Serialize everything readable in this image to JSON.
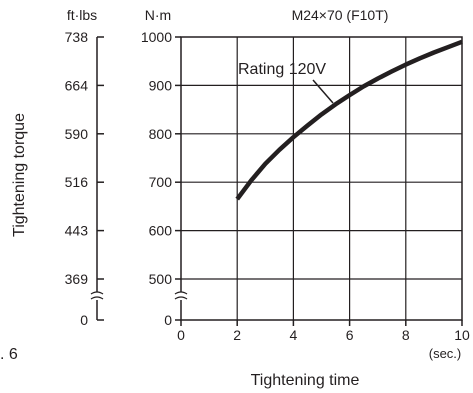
{
  "chart_data": {
    "type": "line",
    "title": "M24×70 (F10T)",
    "xlabel": "Tightening time",
    "x_unit": "(sec.)",
    "ylabel": "Tightening torque",
    "y_unit_left": "ft·lbs",
    "y_unit_right": "N·m",
    "xlim": [
      0,
      10
    ],
    "ylim": [
      400,
      1000
    ],
    "y_break": true,
    "grid": true,
    "x_ticks": [
      "0",
      "2",
      "4",
      "6",
      "8",
      "10"
    ],
    "nm_ticks": [
      {
        "label": "1000",
        "value": 1000
      },
      {
        "label": "900",
        "value": 900
      },
      {
        "label": "800",
        "value": 800
      },
      {
        "label": "700",
        "value": 700
      },
      {
        "label": "600",
        "value": 600
      },
      {
        "label": "500",
        "value": 500
      },
      {
        "label": "0",
        "value": 400
      }
    ],
    "ftlbs_ticks": [
      {
        "label": "738",
        "value": 1000
      },
      {
        "label": "664",
        "value": 900
      },
      {
        "label": "590",
        "value": 800
      },
      {
        "label": "516",
        "value": 700
      },
      {
        "label": "443",
        "value": 600
      },
      {
        "label": "369",
        "value": 500
      },
      {
        "label": "0",
        "value": 400
      }
    ],
    "series": [
      {
        "name": "Rating 120V",
        "x": [
          2.0,
          2.5,
          3.0,
          3.5,
          4.0,
          4.5,
          5.0,
          5.5,
          6.0,
          6.5,
          7.0,
          7.5,
          8.0,
          8.5,
          9.0,
          9.5,
          10.0
        ],
        "y": [
          665,
          704,
          738,
          767,
          793,
          817,
          840,
          861,
          880,
          898,
          914,
          929,
          943,
          956,
          968,
          979,
          990
        ]
      }
    ]
  },
  "fragment_text": ". 6"
}
